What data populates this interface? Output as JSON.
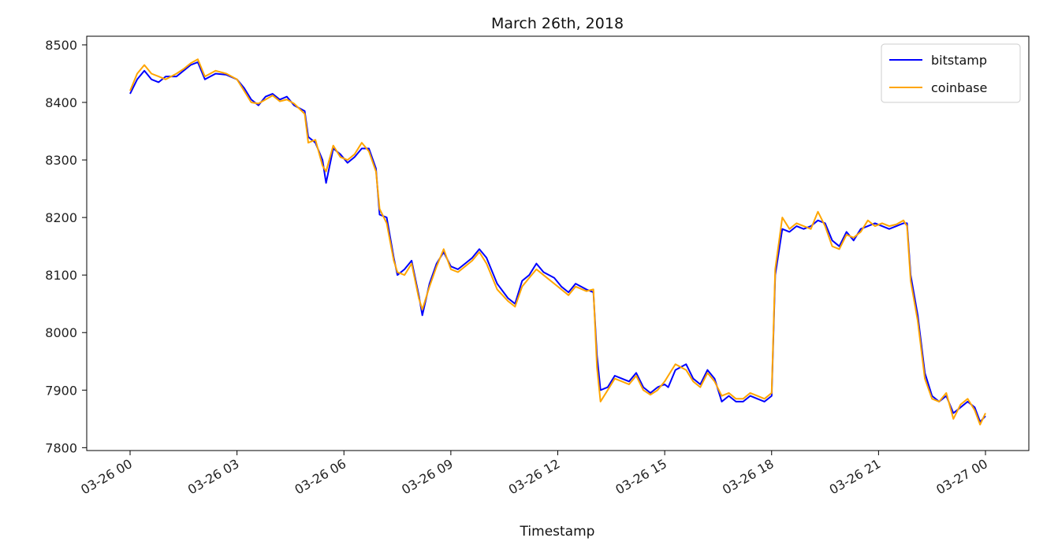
{
  "chart_data": {
    "type": "line",
    "title": "March 26th, 2018",
    "xlabel": "Timestamp",
    "ylabel": "",
    "x_range_hours": [
      0,
      24
    ],
    "ylim": [
      7795,
      8515
    ],
    "grid": false,
    "legend_position": "top-right",
    "y_ticks": [
      7800,
      7900,
      8000,
      8100,
      8200,
      8300,
      8400,
      8500
    ],
    "x_ticks": [
      {
        "hour": 0,
        "label": "03-26 00"
      },
      {
        "hour": 3,
        "label": "03-26 03"
      },
      {
        "hour": 6,
        "label": "03-26 06"
      },
      {
        "hour": 9,
        "label": "03-26 09"
      },
      {
        "hour": 12,
        "label": "03-26 12"
      },
      {
        "hour": 15,
        "label": "03-26 15"
      },
      {
        "hour": 18,
        "label": "03-26 18"
      },
      {
        "hour": 21,
        "label": "03-26 21"
      },
      {
        "hour": 24,
        "label": "03-27 00"
      }
    ],
    "x_unit": "hours since 03-26 00",
    "series": [
      {
        "name": "bitstamp",
        "color": "#0000ff",
        "points": [
          [
            0.0,
            8415
          ],
          [
            0.2,
            8440
          ],
          [
            0.4,
            8455
          ],
          [
            0.6,
            8440
          ],
          [
            0.8,
            8435
          ],
          [
            1.0,
            8445
          ],
          [
            1.3,
            8445
          ],
          [
            1.5,
            8455
          ],
          [
            1.7,
            8465
          ],
          [
            1.9,
            8470
          ],
          [
            2.1,
            8440
          ],
          [
            2.4,
            8450
          ],
          [
            2.7,
            8448
          ],
          [
            3.0,
            8440
          ],
          [
            3.2,
            8425
          ],
          [
            3.4,
            8405
          ],
          [
            3.6,
            8395
          ],
          [
            3.8,
            8410
          ],
          [
            4.0,
            8415
          ],
          [
            4.2,
            8405
          ],
          [
            4.4,
            8410
          ],
          [
            4.6,
            8395
          ],
          [
            4.9,
            8385
          ],
          [
            5.0,
            8340
          ],
          [
            5.2,
            8330
          ],
          [
            5.4,
            8300
          ],
          [
            5.5,
            8260
          ],
          [
            5.7,
            8320
          ],
          [
            5.9,
            8310
          ],
          [
            6.1,
            8295
          ],
          [
            6.3,
            8305
          ],
          [
            6.5,
            8320
          ],
          [
            6.7,
            8320
          ],
          [
            6.9,
            8285
          ],
          [
            7.0,
            8205
          ],
          [
            7.2,
            8200
          ],
          [
            7.4,
            8130
          ],
          [
            7.5,
            8100
          ],
          [
            7.7,
            8110
          ],
          [
            7.9,
            8125
          ],
          [
            8.1,
            8065
          ],
          [
            8.2,
            8030
          ],
          [
            8.4,
            8085
          ],
          [
            8.6,
            8120
          ],
          [
            8.8,
            8140
          ],
          [
            9.0,
            8115
          ],
          [
            9.2,
            8110
          ],
          [
            9.4,
            8120
          ],
          [
            9.6,
            8130
          ],
          [
            9.8,
            8145
          ],
          [
            10.0,
            8130
          ],
          [
            10.3,
            8085
          ],
          [
            10.6,
            8060
          ],
          [
            10.8,
            8050
          ],
          [
            11.0,
            8090
          ],
          [
            11.2,
            8100
          ],
          [
            11.4,
            8120
          ],
          [
            11.6,
            8105
          ],
          [
            11.9,
            8095
          ],
          [
            12.1,
            8080
          ],
          [
            12.3,
            8070
          ],
          [
            12.5,
            8085
          ],
          [
            12.8,
            8075
          ],
          [
            13.0,
            8070
          ],
          [
            13.1,
            7960
          ],
          [
            13.2,
            7900
          ],
          [
            13.4,
            7905
          ],
          [
            13.6,
            7925
          ],
          [
            13.8,
            7920
          ],
          [
            14.0,
            7915
          ],
          [
            14.2,
            7930
          ],
          [
            14.4,
            7905
          ],
          [
            14.6,
            7895
          ],
          [
            14.8,
            7905
          ],
          [
            15.0,
            7910
          ],
          [
            15.1,
            7905
          ],
          [
            15.3,
            7935
          ],
          [
            15.6,
            7945
          ],
          [
            15.8,
            7920
          ],
          [
            16.0,
            7910
          ],
          [
            16.2,
            7935
          ],
          [
            16.4,
            7920
          ],
          [
            16.6,
            7880
          ],
          [
            16.8,
            7890
          ],
          [
            17.0,
            7880
          ],
          [
            17.2,
            7880
          ],
          [
            17.4,
            7890
          ],
          [
            17.6,
            7885
          ],
          [
            17.8,
            7880
          ],
          [
            18.0,
            7890
          ],
          [
            18.1,
            8100
          ],
          [
            18.3,
            8180
          ],
          [
            18.5,
            8175
          ],
          [
            18.7,
            8185
          ],
          [
            18.9,
            8180
          ],
          [
            19.1,
            8185
          ],
          [
            19.3,
            8195
          ],
          [
            19.5,
            8190
          ],
          [
            19.7,
            8160
          ],
          [
            19.9,
            8150
          ],
          [
            20.1,
            8175
          ],
          [
            20.3,
            8160
          ],
          [
            20.5,
            8180
          ],
          [
            20.7,
            8185
          ],
          [
            20.9,
            8190
          ],
          [
            21.1,
            8185
          ],
          [
            21.3,
            8180
          ],
          [
            21.5,
            8185
          ],
          [
            21.7,
            8190
          ],
          [
            21.8,
            8190
          ],
          [
            21.9,
            8100
          ],
          [
            22.1,
            8030
          ],
          [
            22.3,
            7930
          ],
          [
            22.5,
            7890
          ],
          [
            22.7,
            7880
          ],
          [
            22.9,
            7890
          ],
          [
            23.1,
            7860
          ],
          [
            23.3,
            7870
          ],
          [
            23.5,
            7880
          ],
          [
            23.7,
            7870
          ],
          [
            23.85,
            7845
          ],
          [
            24.0,
            7855
          ]
        ]
      },
      {
        "name": "coinbase",
        "color": "#ffa500",
        "points": [
          [
            0.0,
            8420
          ],
          [
            0.2,
            8450
          ],
          [
            0.4,
            8465
          ],
          [
            0.6,
            8450
          ],
          [
            0.8,
            8445
          ],
          [
            1.0,
            8440
          ],
          [
            1.3,
            8450
          ],
          [
            1.5,
            8458
          ],
          [
            1.7,
            8468
          ],
          [
            1.9,
            8475
          ],
          [
            2.1,
            8445
          ],
          [
            2.4,
            8455
          ],
          [
            2.7,
            8450
          ],
          [
            3.0,
            8440
          ],
          [
            3.2,
            8420
          ],
          [
            3.4,
            8400
          ],
          [
            3.6,
            8398
          ],
          [
            3.8,
            8405
          ],
          [
            4.0,
            8412
          ],
          [
            4.2,
            8402
          ],
          [
            4.4,
            8405
          ],
          [
            4.6,
            8398
          ],
          [
            4.9,
            8380
          ],
          [
            5.0,
            8330
          ],
          [
            5.2,
            8335
          ],
          [
            5.4,
            8290
          ],
          [
            5.5,
            8280
          ],
          [
            5.7,
            8325
          ],
          [
            5.9,
            8305
          ],
          [
            6.1,
            8300
          ],
          [
            6.3,
            8310
          ],
          [
            6.5,
            8330
          ],
          [
            6.7,
            8315
          ],
          [
            6.9,
            8280
          ],
          [
            7.0,
            8215
          ],
          [
            7.2,
            8190
          ],
          [
            7.4,
            8125
          ],
          [
            7.5,
            8105
          ],
          [
            7.7,
            8100
          ],
          [
            7.9,
            8120
          ],
          [
            8.1,
            8060
          ],
          [
            8.2,
            8040
          ],
          [
            8.4,
            8080
          ],
          [
            8.6,
            8115
          ],
          [
            8.8,
            8145
          ],
          [
            9.0,
            8110
          ],
          [
            9.2,
            8105
          ],
          [
            9.4,
            8115
          ],
          [
            9.6,
            8125
          ],
          [
            9.8,
            8140
          ],
          [
            10.0,
            8120
          ],
          [
            10.3,
            8075
          ],
          [
            10.6,
            8055
          ],
          [
            10.8,
            8045
          ],
          [
            11.0,
            8080
          ],
          [
            11.2,
            8095
          ],
          [
            11.4,
            8110
          ],
          [
            11.6,
            8100
          ],
          [
            11.9,
            8085
          ],
          [
            12.1,
            8075
          ],
          [
            12.3,
            8065
          ],
          [
            12.5,
            8080
          ],
          [
            12.8,
            8072
          ],
          [
            13.0,
            8075
          ],
          [
            13.1,
            7940
          ],
          [
            13.2,
            7880
          ],
          [
            13.4,
            7900
          ],
          [
            13.6,
            7920
          ],
          [
            13.8,
            7915
          ],
          [
            14.0,
            7910
          ],
          [
            14.2,
            7925
          ],
          [
            14.4,
            7900
          ],
          [
            14.6,
            7892
          ],
          [
            14.8,
            7900
          ],
          [
            15.0,
            7915
          ],
          [
            15.1,
            7925
          ],
          [
            15.3,
            7945
          ],
          [
            15.6,
            7935
          ],
          [
            15.8,
            7915
          ],
          [
            16.0,
            7905
          ],
          [
            16.2,
            7930
          ],
          [
            16.4,
            7915
          ],
          [
            16.6,
            7890
          ],
          [
            16.8,
            7895
          ],
          [
            17.0,
            7885
          ],
          [
            17.2,
            7885
          ],
          [
            17.4,
            7895
          ],
          [
            17.6,
            7890
          ],
          [
            17.8,
            7885
          ],
          [
            18.0,
            7895
          ],
          [
            18.1,
            8110
          ],
          [
            18.3,
            8200
          ],
          [
            18.5,
            8180
          ],
          [
            18.7,
            8190
          ],
          [
            18.9,
            8185
          ],
          [
            19.1,
            8180
          ],
          [
            19.3,
            8210
          ],
          [
            19.5,
            8185
          ],
          [
            19.7,
            8150
          ],
          [
            19.9,
            8145
          ],
          [
            20.1,
            8170
          ],
          [
            20.3,
            8165
          ],
          [
            20.5,
            8175
          ],
          [
            20.7,
            8195
          ],
          [
            20.9,
            8185
          ],
          [
            21.1,
            8190
          ],
          [
            21.3,
            8185
          ],
          [
            21.5,
            8188
          ],
          [
            21.7,
            8195
          ],
          [
            21.8,
            8185
          ],
          [
            21.9,
            8090
          ],
          [
            22.1,
            8020
          ],
          [
            22.3,
            7920
          ],
          [
            22.5,
            7885
          ],
          [
            22.7,
            7880
          ],
          [
            22.9,
            7895
          ],
          [
            23.1,
            7850
          ],
          [
            23.3,
            7875
          ],
          [
            23.5,
            7885
          ],
          [
            23.7,
            7865
          ],
          [
            23.85,
            7840
          ],
          [
            24.0,
            7860
          ]
        ]
      }
    ]
  }
}
